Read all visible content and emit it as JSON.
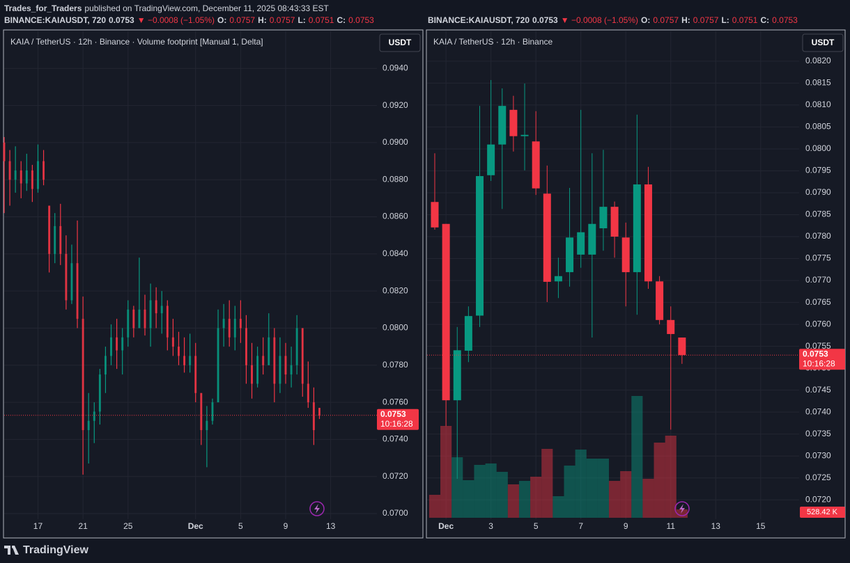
{
  "header": {
    "publisher": "Trades_for_Traders",
    "published": "published on TradingView.com, December 11, 2025 08:43:33 EST"
  },
  "footer": {
    "brand": "TradingView"
  },
  "chart_data": [
    {
      "type": "footprint",
      "quote": {
        "symbol": "BINANCE:KAIAUSDT, 720",
        "last": "0.0753",
        "change": "▼ −0.0008 (−1.05%)",
        "ohlc_labels": [
          "O:",
          "H:",
          "L:",
          "C:"
        ],
        "ohlc_values": [
          "0.0757",
          "0.0757",
          "0.0751",
          "0.0753"
        ]
      },
      "legend": "KAIA / TetherUS · 12h · Binance · Volume footprint [Manual 1, Delta]",
      "currency": "USDT",
      "last_price": {
        "value": 0.0753,
        "label": "0.0753"
      },
      "countdown": "10:16:28",
      "up_color": "#089981",
      "down_color": "#f23645",
      "grid": true,
      "categories": [
        null,
        null,
        null,
        null,
        null,
        null,
        null,
        null,
        null,
        null,
        null,
        null,
        null,
        null,
        null,
        null,
        null,
        null,
        null,
        null,
        null,
        null,
        null,
        null,
        null,
        null,
        null,
        null,
        null,
        null,
        null,
        null,
        null,
        null,
        null,
        null,
        null,
        null,
        null,
        null,
        null,
        null,
        null,
        null,
        null,
        null,
        null,
        null,
        null,
        null,
        null,
        null,
        null,
        null,
        null,
        null,
        null
      ],
      "open": [
        0.09,
        0.089,
        0.088,
        0.0885,
        0.0878,
        0.0885,
        0.0875,
        0.089,
        0.0866,
        0.084,
        0.0855,
        0.084,
        0.0815,
        0.0835,
        0.0805,
        0.0745,
        0.075,
        0.0755,
        0.0775,
        0.0785,
        0.0795,
        0.0788,
        0.0795,
        0.081,
        0.08,
        0.081,
        0.08,
        0.0815,
        0.0808,
        0.0812,
        0.0795,
        0.079,
        0.0785,
        0.078,
        0.0785,
        0.0765,
        0.0745,
        0.075,
        0.076,
        0.08,
        0.0805,
        0.0795,
        0.0805,
        0.08,
        0.078,
        0.077,
        0.0785,
        0.078,
        0.0795,
        0.077,
        0.0785,
        0.0775,
        0.078,
        0.08,
        0.077,
        0.076,
        0.0757
      ],
      "high": [
        0.0903,
        0.0896,
        0.0898,
        0.089,
        0.0894,
        0.0888,
        0.0899,
        0.0896,
        0.0866,
        0.0862,
        0.0867,
        0.085,
        0.0845,
        0.0858,
        0.0817,
        0.0765,
        0.076,
        0.0778,
        0.079,
        0.0802,
        0.0805,
        0.08,
        0.0815,
        0.0812,
        0.0838,
        0.0818,
        0.0824,
        0.0822,
        0.082,
        0.0815,
        0.0805,
        0.0798,
        0.0795,
        0.0797,
        0.0792,
        0.0765,
        0.0758,
        0.0762,
        0.081,
        0.0813,
        0.0815,
        0.0812,
        0.0815,
        0.0807,
        0.0792,
        0.079,
        0.0795,
        0.0808,
        0.08,
        0.0795,
        0.0792,
        0.079,
        0.0807,
        0.08,
        0.0782,
        0.0768,
        0.0757
      ],
      "low": [
        0.0862,
        0.0866,
        0.0873,
        0.087,
        0.0874,
        0.0868,
        0.0873,
        0.0877,
        0.083,
        0.0835,
        0.0834,
        0.081,
        0.0813,
        0.08,
        0.0721,
        0.0727,
        0.0738,
        0.0748,
        0.0765,
        0.078,
        0.0778,
        0.0775,
        0.079,
        0.0795,
        0.08,
        0.0796,
        0.079,
        0.08,
        0.0797,
        0.0788,
        0.0785,
        0.078,
        0.0776,
        0.0776,
        0.076,
        0.0737,
        0.0725,
        0.0748,
        0.076,
        0.079,
        0.079,
        0.0788,
        0.0792,
        0.077,
        0.0762,
        0.0768,
        0.0775,
        0.078,
        0.076,
        0.0765,
        0.077,
        0.0768,
        0.0775,
        0.0763,
        0.0757,
        0.0737,
        0.0751
      ],
      "close": [
        0.089,
        0.088,
        0.0885,
        0.0878,
        0.0885,
        0.0875,
        0.089,
        0.088,
        0.084,
        0.0855,
        0.084,
        0.0815,
        0.0835,
        0.0805,
        0.0745,
        0.075,
        0.0755,
        0.0775,
        0.0785,
        0.0795,
        0.0788,
        0.0795,
        0.081,
        0.08,
        0.081,
        0.08,
        0.0815,
        0.0808,
        0.0812,
        0.0795,
        0.079,
        0.0785,
        0.078,
        0.0785,
        0.0765,
        0.0745,
        0.075,
        0.076,
        0.08,
        0.0805,
        0.0795,
        0.0805,
        0.08,
        0.078,
        0.077,
        0.0785,
        0.078,
        0.0795,
        0.077,
        0.0785,
        0.0775,
        0.078,
        0.08,
        0.077,
        0.076,
        0.0745,
        0.0753
      ],
      "ylim": [
        0.0697,
        0.096
      ],
      "yticks": [
        {
          "value": 0.07,
          "label": "0.0700"
        },
        {
          "value": 0.072,
          "label": "0.0720"
        },
        {
          "value": 0.074,
          "label": "0.0740"
        },
        {
          "value": 0.076,
          "label": "0.0760"
        },
        {
          "value": 0.078,
          "label": "0.0780"
        },
        {
          "value": 0.08,
          "label": "0.0800"
        },
        {
          "value": 0.082,
          "label": "0.0820"
        },
        {
          "value": 0.084,
          "label": "0.0840"
        },
        {
          "value": 0.086,
          "label": "0.0860"
        },
        {
          "value": 0.088,
          "label": "0.0880"
        },
        {
          "value": 0.09,
          "label": "0.0900"
        },
        {
          "value": 0.092,
          "label": "0.0920"
        },
        {
          "value": 0.094,
          "label": "0.0940"
        }
      ],
      "xticks": [
        {
          "value": 6,
          "label": "17"
        },
        {
          "value": 14,
          "label": "21"
        },
        {
          "value": 22,
          "label": "25"
        },
        {
          "value": 34,
          "label": "Dec"
        },
        {
          "value": 42,
          "label": "5"
        },
        {
          "value": 50,
          "label": "9"
        },
        {
          "value": 58,
          "label": "13"
        }
      ]
    },
    {
      "type": "candlestick",
      "quote": {
        "symbol": "BINANCE:KAIAUSDT, 720",
        "last": "0.0753",
        "change": "▼ −0.0008 (−1.05%)",
        "ohlc_labels": [
          "O:",
          "H:",
          "L:",
          "C:"
        ],
        "ohlc_values": [
          "0.0757",
          "0.0757",
          "0.0751",
          "0.0753"
        ]
      },
      "legend": "KAIA / TetherUS · 12h · Binance",
      "currency": "USDT",
      "last_price": {
        "value": 0.0753,
        "label": "0.0753"
      },
      "countdown": "10:16:28",
      "up_color": "#089981",
      "down_color": "#f23645",
      "grid": true,
      "categories": [
        null,
        null,
        null,
        null,
        null,
        null,
        null,
        null,
        null,
        null,
        null,
        null,
        null,
        null,
        null,
        null,
        null,
        null,
        null,
        null,
        null,
        null,
        null
      ],
      "open": [
        0.07879,
        0.07829,
        0.07427,
        0.0754,
        0.0762,
        0.0794,
        0.0801,
        0.08089,
        0.08029,
        0.08017,
        0.07898,
        0.07698,
        0.07719,
        0.07759,
        0.07759,
        0.07819,
        0.07868,
        0.07798,
        0.07719,
        0.07919,
        0.07698,
        0.0761,
        0.0757
      ],
      "high": [
        0.0799,
        0.07829,
        0.07594,
        0.07641,
        0.08098,
        0.08157,
        0.08138,
        0.08121,
        0.08149,
        0.08086,
        0.07962,
        0.07752,
        0.07911,
        0.08089,
        0.0799,
        0.07998,
        0.0788,
        0.07832,
        0.08078,
        0.07959,
        0.0771,
        0.07641,
        0.0757
      ],
      "low": [
        0.07816,
        0.07368,
        0.07248,
        0.07514,
        0.07594,
        0.07927,
        0.07863,
        0.07994,
        0.07951,
        0.07895,
        0.07651,
        0.0766,
        0.07686,
        0.07729,
        0.0757,
        0.07768,
        0.07752,
        0.07641,
        0.07622,
        0.07681,
        0.076,
        0.0736,
        0.0751
      ],
      "close": [
        0.07821,
        0.07427,
        0.07541,
        0.07619,
        0.07938,
        0.0801,
        0.08098,
        0.08029,
        0.08032,
        0.0791,
        0.07697,
        0.0771,
        0.07798,
        0.0781,
        0.07829,
        0.07868,
        0.078,
        0.07719,
        0.07919,
        0.07698,
        0.0761,
        0.07578,
        0.0753
      ],
      "volume": {
        "values": [
          1452000,
          5808000,
          3828000,
          2376000,
          3344000,
          3432000,
          2904000,
          2112000,
          2332000,
          2596000,
          4356000,
          1364000,
          3300000,
          4312000,
          3740000,
          3740000,
          2332000,
          2948000,
          7700000,
          2464000,
          4752000,
          5192000,
          528420
        ],
        "last_label": "528.42 K"
      },
      "ylim": [
        0.07156,
        0.08268
      ],
      "yticks": [
        {
          "value": 0.072,
          "label": "0.0720"
        },
        {
          "value": 0.0725,
          "label": "0.0725"
        },
        {
          "value": 0.073,
          "label": "0.0730"
        },
        {
          "value": 0.0735,
          "label": "0.0735"
        },
        {
          "value": 0.074,
          "label": "0.0740"
        },
        {
          "value": 0.0745,
          "label": "0.0745"
        },
        {
          "value": 0.075,
          "label": "0.0750"
        },
        {
          "value": 0.0755,
          "label": "0.0755"
        },
        {
          "value": 0.076,
          "label": "0.0760"
        },
        {
          "value": 0.0765,
          "label": "0.0765"
        },
        {
          "value": 0.077,
          "label": "0.0770"
        },
        {
          "value": 0.0775,
          "label": "0.0775"
        },
        {
          "value": 0.078,
          "label": "0.0780"
        },
        {
          "value": 0.0785,
          "label": "0.0785"
        },
        {
          "value": 0.079,
          "label": "0.0790"
        },
        {
          "value": 0.0795,
          "label": "0.0795"
        },
        {
          "value": 0.08,
          "label": "0.0800"
        },
        {
          "value": 0.0805,
          "label": "0.0805"
        },
        {
          "value": 0.081,
          "label": "0.0810"
        },
        {
          "value": 0.0815,
          "label": "0.0815"
        },
        {
          "value": 0.082,
          "label": "0.0820"
        }
      ],
      "xticks": [
        {
          "value": 1,
          "label": "Dec"
        },
        {
          "value": 5,
          "label": "3"
        },
        {
          "value": 9,
          "label": "5"
        },
        {
          "value": 13,
          "label": "7"
        },
        {
          "value": 17,
          "label": "9"
        },
        {
          "value": 21,
          "label": "11"
        },
        {
          "value": 25,
          "label": "13"
        },
        {
          "value": 29,
          "label": "15"
        }
      ]
    }
  ]
}
